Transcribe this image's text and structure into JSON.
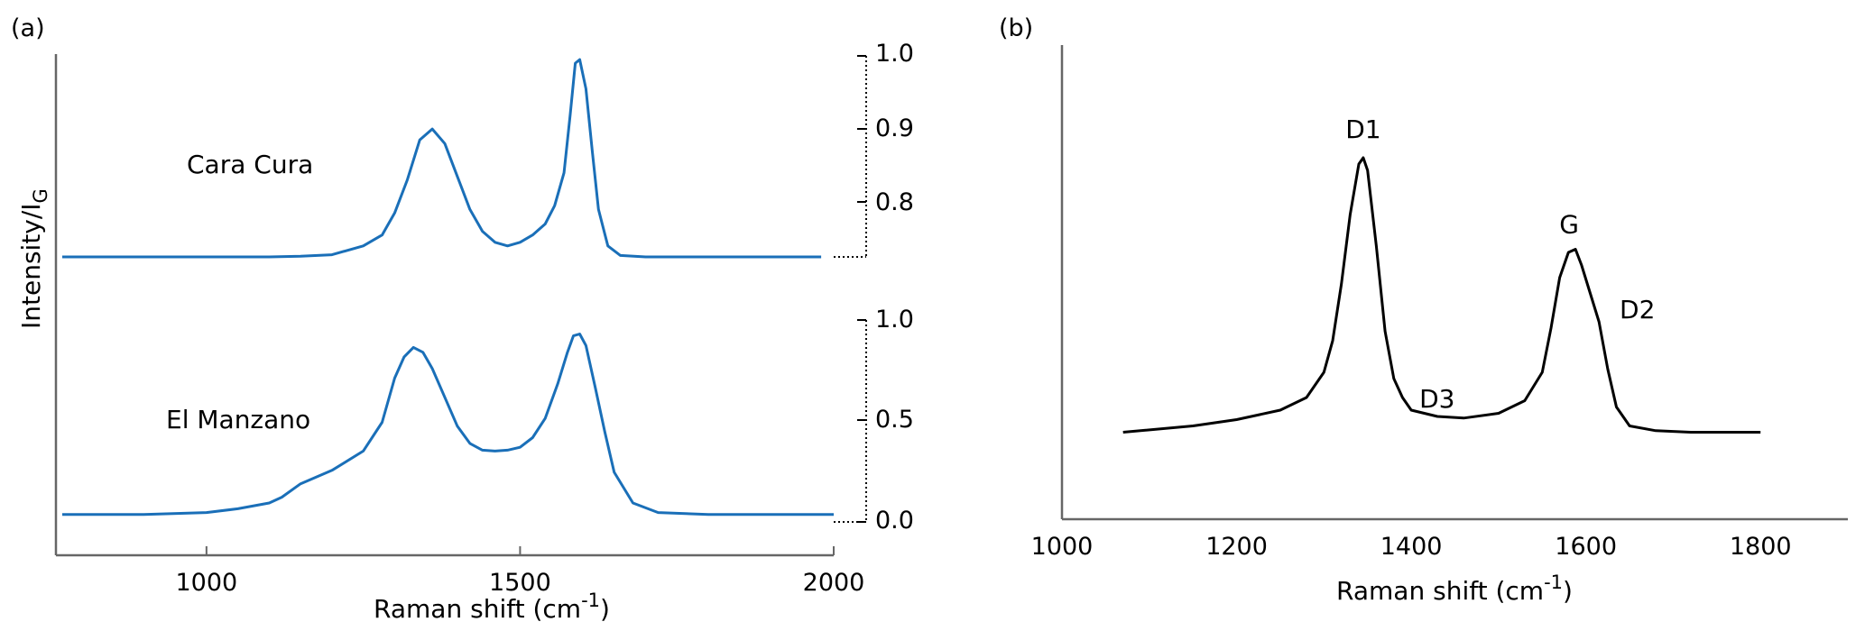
{
  "chart_data": [
    {
      "panel": "(a)",
      "type": "line",
      "xlabel": "Raman shift (cm",
      "xlabel_sup": "-1",
      "xlabel_end": ")",
      "ylabel": "Intensity/I",
      "ylabel_sub": "G",
      "xlim": [
        760,
        2000
      ],
      "xticks": [
        "1000",
        "1500",
        "2000"
      ],
      "grid": false,
      "color": "#1a6fb8",
      "series": [
        {
          "name": "Cara Cura",
          "yticks": [
            "1.0",
            "0.9",
            "0.8"
          ],
          "ylim": [
            0.725,
            1.0
          ],
          "x": [
            770,
            900,
            1000,
            1100,
            1150,
            1200,
            1250,
            1280,
            1300,
            1320,
            1340,
            1360,
            1380,
            1400,
            1420,
            1440,
            1460,
            1480,
            1500,
            1520,
            1540,
            1555,
            1570,
            1580,
            1588,
            1595,
            1605,
            1615,
            1625,
            1640,
            1660,
            1700,
            1800,
            1900,
            1980
          ],
          "y": [
            0.725,
            0.725,
            0.725,
            0.725,
            0.726,
            0.728,
            0.74,
            0.755,
            0.785,
            0.83,
            0.885,
            0.9,
            0.88,
            0.835,
            0.79,
            0.76,
            0.745,
            0.74,
            0.745,
            0.755,
            0.77,
            0.795,
            0.84,
            0.92,
            0.99,
            0.995,
            0.955,
            0.87,
            0.79,
            0.74,
            0.727,
            0.725,
            0.725,
            0.725,
            0.725
          ]
        },
        {
          "name": "El Manzano",
          "yticks": [
            "1.0",
            "0.5",
            "0.0"
          ],
          "ylim": [
            0.0,
            1.0
          ],
          "x": [
            770,
            900,
            1000,
            1050,
            1100,
            1120,
            1150,
            1200,
            1250,
            1280,
            1300,
            1315,
            1330,
            1345,
            1360,
            1380,
            1400,
            1420,
            1440,
            1460,
            1480,
            1500,
            1520,
            1540,
            1560,
            1575,
            1585,
            1595,
            1605,
            1620,
            1635,
            1650,
            1680,
            1720,
            1800,
            1900,
            2000
          ],
          "y": [
            0.02,
            0.02,
            0.03,
            0.05,
            0.08,
            0.11,
            0.18,
            0.25,
            0.35,
            0.5,
            0.73,
            0.84,
            0.89,
            0.865,
            0.78,
            0.63,
            0.48,
            0.39,
            0.355,
            0.35,
            0.355,
            0.37,
            0.42,
            0.52,
            0.7,
            0.86,
            0.95,
            0.96,
            0.9,
            0.68,
            0.45,
            0.24,
            0.08,
            0.03,
            0.02,
            0.02,
            0.02
          ]
        }
      ]
    },
    {
      "panel": "(b)",
      "type": "line",
      "xlabel": "Raman shift (cm",
      "xlabel_sup": "-1",
      "xlabel_end": ")",
      "xlim": [
        1000,
        1900
      ],
      "xticks": [
        1000,
        1200,
        1400,
        1600,
        1800
      ],
      "ylim": [
        0,
        1
      ],
      "grid": false,
      "color": "#000000",
      "series": [
        {
          "x": [
            1070,
            1150,
            1200,
            1250,
            1280,
            1300,
            1310,
            1320,
            1330,
            1340,
            1345,
            1350,
            1360,
            1370,
            1380,
            1390,
            1400,
            1430,
            1460,
            1500,
            1530,
            1550,
            1560,
            1570,
            1580,
            1588,
            1595,
            1605,
            1615,
            1625,
            1635,
            1650,
            1680,
            1720,
            1800
          ],
          "y": [
            0.03,
            0.05,
            0.07,
            0.1,
            0.14,
            0.22,
            0.32,
            0.5,
            0.72,
            0.88,
            0.9,
            0.86,
            0.62,
            0.35,
            0.2,
            0.14,
            0.1,
            0.08,
            0.075,
            0.09,
            0.13,
            0.22,
            0.36,
            0.52,
            0.6,
            0.61,
            0.56,
            0.47,
            0.38,
            0.23,
            0.11,
            0.05,
            0.035,
            0.03,
            0.03
          ]
        }
      ],
      "annotations": [
        {
          "text": "D1",
          "x": 1345,
          "y": 0.9
        },
        {
          "text": "D3",
          "x": 1440,
          "y": 0.075
        },
        {
          "text": "G",
          "x": 1585,
          "y": 0.61
        },
        {
          "text": "D2",
          "x": 1620,
          "y": 0.38
        }
      ]
    }
  ]
}
